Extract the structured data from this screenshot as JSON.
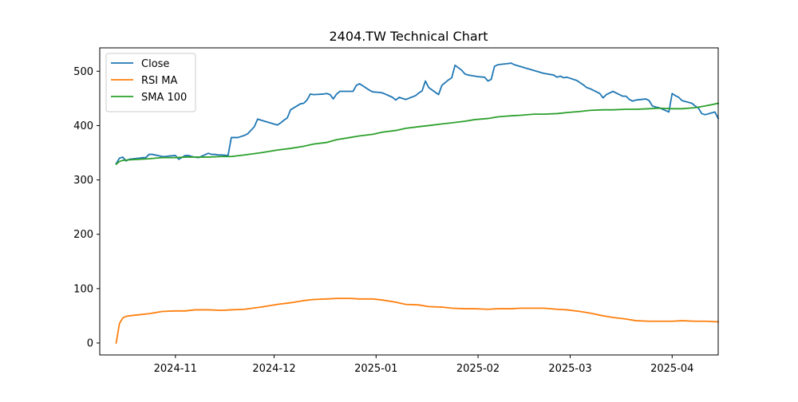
{
  "chart_data": {
    "type": "line",
    "title": "2404.TW Technical Chart",
    "xlabel": "",
    "ylabel": "",
    "xlim": [
      "2024-10-09",
      "2025-04-15"
    ],
    "ylim": [
      -22,
      543
    ],
    "grid": false,
    "legend_position": "top-left",
    "x_ticks": [
      "2024-11-01",
      "2024-12-01",
      "2025-01-01",
      "2025-02-01",
      "2025-03-01",
      "2025-04-01"
    ],
    "x_tick_labels": [
      "2024-11",
      "2024-12",
      "2025-01",
      "2025-02",
      "2025-03",
      "2025-04"
    ],
    "y_ticks": [
      0,
      100,
      200,
      300,
      400,
      500
    ],
    "y_tick_labels": [
      "0",
      "100",
      "200",
      "300",
      "400",
      "500"
    ],
    "series": [
      {
        "name": "Close",
        "color": "#1f77b4",
        "points": [
          [
            "2024-10-14",
            330
          ],
          [
            "2024-10-15",
            340
          ],
          [
            "2024-10-16",
            342
          ],
          [
            "2024-10-17",
            335
          ],
          [
            "2024-10-18",
            338
          ],
          [
            "2024-10-21",
            340
          ],
          [
            "2024-10-22",
            341
          ],
          [
            "2024-10-23",
            341
          ],
          [
            "2024-10-24",
            347
          ],
          [
            "2024-10-25",
            347
          ],
          [
            "2024-10-28",
            343
          ],
          [
            "2024-10-29",
            343
          ],
          [
            "2024-10-30",
            344
          ],
          [
            "2024-11-01",
            345
          ],
          [
            "2024-11-02",
            338
          ],
          [
            "2024-11-04",
            345
          ],
          [
            "2024-11-05",
            345
          ],
          [
            "2024-11-06",
            343
          ],
          [
            "2024-11-07",
            342
          ],
          [
            "2024-11-08",
            341
          ],
          [
            "2024-11-11",
            349
          ],
          [
            "2024-11-12",
            347
          ],
          [
            "2024-11-13",
            347
          ],
          [
            "2024-11-14",
            346
          ],
          [
            "2024-11-15",
            346
          ],
          [
            "2024-11-17",
            345
          ],
          [
            "2024-11-18",
            378
          ],
          [
            "2024-11-19",
            378
          ],
          [
            "2024-11-20",
            378
          ],
          [
            "2024-11-21",
            380
          ],
          [
            "2024-11-22",
            382
          ],
          [
            "2024-11-23",
            385
          ],
          [
            "2024-11-25",
            398
          ],
          [
            "2024-11-26",
            412
          ],
          [
            "2024-11-27",
            410
          ],
          [
            "2024-12-02",
            401
          ],
          [
            "2024-12-03",
            405
          ],
          [
            "2024-12-04",
            410
          ],
          [
            "2024-12-05",
            414
          ],
          [
            "2024-12-06",
            429
          ],
          [
            "2024-12-09",
            440
          ],
          [
            "2024-12-10",
            441
          ],
          [
            "2024-12-11",
            447
          ],
          [
            "2024-12-12",
            458
          ],
          [
            "2024-12-13",
            457
          ],
          [
            "2024-12-16",
            458
          ],
          [
            "2024-12-17",
            459
          ],
          [
            "2024-12-18",
            457
          ],
          [
            "2024-12-19",
            449
          ],
          [
            "2024-12-20",
            458
          ],
          [
            "2024-12-21",
            463
          ],
          [
            "2024-12-23",
            463
          ],
          [
            "2024-12-24",
            463
          ],
          [
            "2024-12-25",
            463
          ],
          [
            "2024-12-26",
            474
          ],
          [
            "2024-12-27",
            477
          ],
          [
            "2024-12-30",
            465
          ],
          [
            "2024-12-31",
            462
          ],
          [
            "2025-01-02",
            461
          ],
          [
            "2025-01-03",
            460
          ],
          [
            "2025-01-06",
            452
          ],
          [
            "2025-01-07",
            447
          ],
          [
            "2025-01-08",
            452
          ],
          [
            "2025-01-09",
            450
          ],
          [
            "2025-01-10",
            448
          ],
          [
            "2025-01-13",
            455
          ],
          [
            "2025-01-14",
            460
          ],
          [
            "2025-01-15",
            464
          ],
          [
            "2025-01-16",
            482
          ],
          [
            "2025-01-17",
            470
          ],
          [
            "2025-01-20",
            457
          ],
          [
            "2025-01-21",
            474
          ],
          [
            "2025-01-22",
            479
          ],
          [
            "2025-01-23",
            484
          ],
          [
            "2025-01-24",
            488
          ],
          [
            "2025-01-25",
            511
          ],
          [
            "2025-01-27",
            502
          ],
          [
            "2025-01-28",
            495
          ],
          [
            "2025-01-29",
            493
          ],
          [
            "2025-01-30",
            492
          ],
          [
            "2025-02-01",
            490
          ],
          [
            "2025-02-03",
            489
          ],
          [
            "2025-02-04",
            482
          ],
          [
            "2025-02-05",
            485
          ],
          [
            "2025-02-06",
            509
          ],
          [
            "2025-02-07",
            512
          ],
          [
            "2025-02-10",
            514
          ],
          [
            "2025-02-11",
            515
          ],
          [
            "2025-02-12",
            512
          ],
          [
            "2025-02-21",
            496
          ],
          [
            "2025-02-24",
            493
          ],
          [
            "2025-02-25",
            489
          ],
          [
            "2025-02-26",
            491
          ],
          [
            "2025-02-27",
            488
          ],
          [
            "2025-02-28",
            489
          ],
          [
            "2025-03-03",
            483
          ],
          [
            "2025-03-04",
            479
          ],
          [
            "2025-03-05",
            475
          ],
          [
            "2025-03-06",
            470
          ],
          [
            "2025-03-07",
            468
          ],
          [
            "2025-03-10",
            459
          ],
          [
            "2025-03-11",
            451
          ],
          [
            "2025-03-12",
            457
          ],
          [
            "2025-03-13",
            460
          ],
          [
            "2025-03-14",
            463
          ],
          [
            "2025-03-17",
            454
          ],
          [
            "2025-03-18",
            454
          ],
          [
            "2025-03-19",
            448
          ],
          [
            "2025-03-20",
            445
          ],
          [
            "2025-03-21",
            447
          ],
          [
            "2025-03-24",
            449
          ],
          [
            "2025-03-25",
            446
          ],
          [
            "2025-03-26",
            436
          ],
          [
            "2025-03-27",
            434
          ],
          [
            "2025-03-28",
            433
          ],
          [
            "2025-03-31",
            425
          ],
          [
            "2025-04-01",
            459
          ],
          [
            "2025-04-02",
            455
          ],
          [
            "2025-04-03",
            452
          ],
          [
            "2025-04-04",
            446
          ],
          [
            "2025-04-07",
            441
          ],
          [
            "2025-04-08",
            436
          ],
          [
            "2025-04-09",
            432
          ],
          [
            "2025-04-10",
            422
          ],
          [
            "2025-04-11",
            420
          ],
          [
            "2025-04-14",
            425
          ],
          [
            "2025-04-15",
            413
          ]
        ]
      },
      {
        "name": "RSI MA",
        "color": "#ff7f0e",
        "points": [
          [
            "2024-10-14",
            0
          ],
          [
            "2024-10-15",
            36
          ],
          [
            "2024-10-16",
            46
          ],
          [
            "2024-10-17",
            49
          ],
          [
            "2024-10-18",
            50
          ],
          [
            "2024-10-21",
            52
          ],
          [
            "2024-10-24",
            54
          ],
          [
            "2024-10-28",
            58
          ],
          [
            "2024-11-01",
            59
          ],
          [
            "2024-11-04",
            59
          ],
          [
            "2024-11-07",
            61
          ],
          [
            "2024-11-11",
            61
          ],
          [
            "2024-11-15",
            60
          ],
          [
            "2024-11-18",
            61
          ],
          [
            "2024-11-22",
            62
          ],
          [
            "2024-11-27",
            66
          ],
          [
            "2024-12-02",
            71
          ],
          [
            "2024-12-06",
            74
          ],
          [
            "2024-12-10",
            78
          ],
          [
            "2024-12-13",
            80
          ],
          [
            "2024-12-17",
            81
          ],
          [
            "2024-12-20",
            82
          ],
          [
            "2024-12-24",
            82
          ],
          [
            "2024-12-27",
            81
          ],
          [
            "2024-12-31",
            81
          ],
          [
            "2025-01-03",
            79
          ],
          [
            "2025-01-07",
            75
          ],
          [
            "2025-01-10",
            71
          ],
          [
            "2025-01-14",
            70
          ],
          [
            "2025-01-17",
            67
          ],
          [
            "2025-01-21",
            66
          ],
          [
            "2025-01-24",
            64
          ],
          [
            "2025-01-28",
            63
          ],
          [
            "2025-01-31",
            63
          ],
          [
            "2025-02-04",
            62
          ],
          [
            "2025-02-07",
            63
          ],
          [
            "2025-02-11",
            63
          ],
          [
            "2025-02-14",
            64
          ],
          [
            "2025-02-18",
            64
          ],
          [
            "2025-02-21",
            64
          ],
          [
            "2025-02-25",
            62
          ],
          [
            "2025-02-28",
            61
          ],
          [
            "2025-03-04",
            58
          ],
          [
            "2025-03-07",
            55
          ],
          [
            "2025-03-11",
            50
          ],
          [
            "2025-03-14",
            47
          ],
          [
            "2025-03-18",
            44
          ],
          [
            "2025-03-21",
            41
          ],
          [
            "2025-03-25",
            40
          ],
          [
            "2025-03-28",
            40
          ],
          [
            "2025-04-01",
            40
          ],
          [
            "2025-04-04",
            41
          ],
          [
            "2025-04-08",
            40
          ],
          [
            "2025-04-11",
            40
          ],
          [
            "2025-04-15",
            39
          ]
        ]
      },
      {
        "name": "SMA 100",
        "color": "#2ca02c",
        "points": [
          [
            "2024-10-14",
            329
          ],
          [
            "2024-10-15",
            334
          ],
          [
            "2024-10-16",
            336
          ],
          [
            "2024-10-18",
            337
          ],
          [
            "2024-10-21",
            338
          ],
          [
            "2024-10-24",
            339
          ],
          [
            "2024-10-28",
            341
          ],
          [
            "2024-11-01",
            341
          ],
          [
            "2024-11-04",
            342
          ],
          [
            "2024-11-07",
            342
          ],
          [
            "2024-11-11",
            342
          ],
          [
            "2024-11-15",
            343
          ],
          [
            "2024-11-18",
            343
          ],
          [
            "2024-11-22",
            346
          ],
          [
            "2024-11-27",
            350
          ],
          [
            "2024-12-02",
            355
          ],
          [
            "2024-12-06",
            358
          ],
          [
            "2024-12-10",
            362
          ],
          [
            "2024-12-13",
            366
          ],
          [
            "2024-12-17",
            369
          ],
          [
            "2024-12-20",
            374
          ],
          [
            "2024-12-24",
            378
          ],
          [
            "2024-12-27",
            381
          ],
          [
            "2024-12-31",
            384
          ],
          [
            "2025-01-03",
            388
          ],
          [
            "2025-01-07",
            391
          ],
          [
            "2025-01-10",
            395
          ],
          [
            "2025-01-14",
            398
          ],
          [
            "2025-01-17",
            400
          ],
          [
            "2025-01-21",
            403
          ],
          [
            "2025-01-24",
            405
          ],
          [
            "2025-01-28",
            408
          ],
          [
            "2025-01-31",
            411
          ],
          [
            "2025-02-04",
            413
          ],
          [
            "2025-02-07",
            416
          ],
          [
            "2025-02-11",
            418
          ],
          [
            "2025-02-14",
            419
          ],
          [
            "2025-02-18",
            421
          ],
          [
            "2025-02-21",
            421
          ],
          [
            "2025-02-25",
            422
          ],
          [
            "2025-02-28",
            424
          ],
          [
            "2025-03-04",
            426
          ],
          [
            "2025-03-07",
            428
          ],
          [
            "2025-03-11",
            429
          ],
          [
            "2025-03-14",
            429
          ],
          [
            "2025-03-18",
            430
          ],
          [
            "2025-03-21",
            430
          ],
          [
            "2025-03-25",
            431
          ],
          [
            "2025-03-28",
            432
          ],
          [
            "2025-04-01",
            431
          ],
          [
            "2025-04-04",
            431
          ],
          [
            "2025-04-08",
            433
          ],
          [
            "2025-04-11",
            436
          ],
          [
            "2025-04-15",
            441
          ]
        ]
      }
    ]
  }
}
